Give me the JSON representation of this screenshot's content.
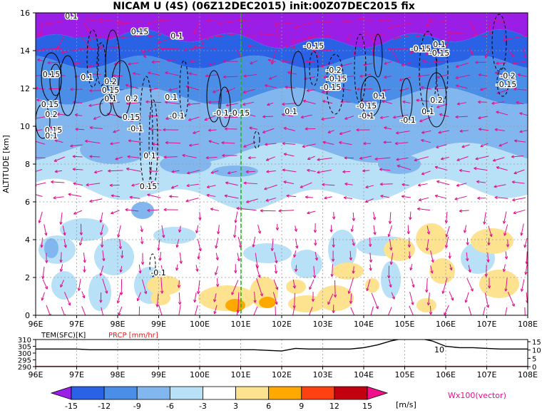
{
  "title": "NICAM U (4S) (06Z12DEC2015) init:00Z07DEC2015 fix",
  "chart_data": [
    {
      "type": "heatmap",
      "variable": "U",
      "unit": "m/s",
      "ylabel": "ALTITUDE [km]",
      "x_ticks": [
        "96E",
        "97E",
        "98E",
        "99E",
        "100E",
        "101E",
        "102E",
        "103E",
        "104E",
        "105E",
        "106E",
        "107E",
        "108E"
      ],
      "x_range": [
        96,
        108
      ],
      "y_ticks": [
        "0",
        "2",
        "4",
        "6",
        "8",
        "10",
        "12",
        "14",
        "16"
      ],
      "y_range": [
        0,
        16
      ],
      "grid": true,
      "marker_longitude": 101,
      "contour_labels": [
        "0.1",
        "0.15",
        "0.15",
        "0.2",
        "0.2",
        "0.15",
        "0.1",
        "0.2",
        "0.15",
        "0.1",
        "0.15",
        "0.1",
        "-0.15",
        "0.15",
        "0.1",
        "-0.1",
        "-0.1",
        "-0.15",
        "-0.2",
        "-0.15",
        "-0.15",
        "0.1",
        "-0.15",
        "-0.1",
        "0.1",
        "-0.1",
        "-0.15",
        "0.2",
        "0.1",
        "-0.2",
        "-0.15",
        "-0.15",
        "-0.1",
        "-0.1",
        "0.1",
        "0.1",
        "0.1",
        "0.15"
      ],
      "color_levels": [
        -15,
        -12,
        -9,
        -6,
        -3,
        3,
        6,
        9,
        12,
        15
      ],
      "color_scale": [
        "#9a1ee6",
        "#2a62e6",
        "#4a8ee8",
        "#82b6ee",
        "#b8e0f6",
        "#ffffff",
        "#fde290",
        "#fea800",
        "#ff4010",
        "#c20010",
        "#f0108a"
      ],
      "vector_label": "Wx100(vector)",
      "vector_color": "#e0108a"
    },
    {
      "type": "line",
      "series": [
        {
          "name": "TEM(SFC)[K]",
          "color": "#000000",
          "y_ticks": [
            "290",
            "295",
            "300",
            "305",
            "310"
          ]
        },
        {
          "name": "PRCP [mm/hr]",
          "color": "#e02020",
          "y_ticks": [
            "0",
            "5",
            "10",
            "15"
          ]
        }
      ],
      "x_ticks": [
        "96E",
        "97E",
        "98E",
        "99E",
        "100E",
        "101E",
        "102E",
        "103E",
        "104E",
        "105E",
        "106E",
        "107E",
        "108E"
      ],
      "tem_values": [
        303,
        303,
        303,
        303,
        302.5,
        302.5,
        302.5,
        302.5,
        302.5,
        302.5,
        302.5,
        302.5,
        302.5,
        302.5,
        302.5,
        302.5,
        302.5,
        302,
        301.5,
        303.5,
        303,
        303,
        303,
        303,
        304,
        306,
        309,
        311,
        311,
        309,
        305,
        304,
        304,
        303.5,
        303,
        303,
        303
      ],
      "inline_label": "10"
    }
  ],
  "colorbar": {
    "ticks": [
      "-15",
      "-12",
      "-9",
      "-6",
      "-3",
      "3",
      "6",
      "9",
      "12",
      "15"
    ],
    "unit": "[m/s]"
  }
}
